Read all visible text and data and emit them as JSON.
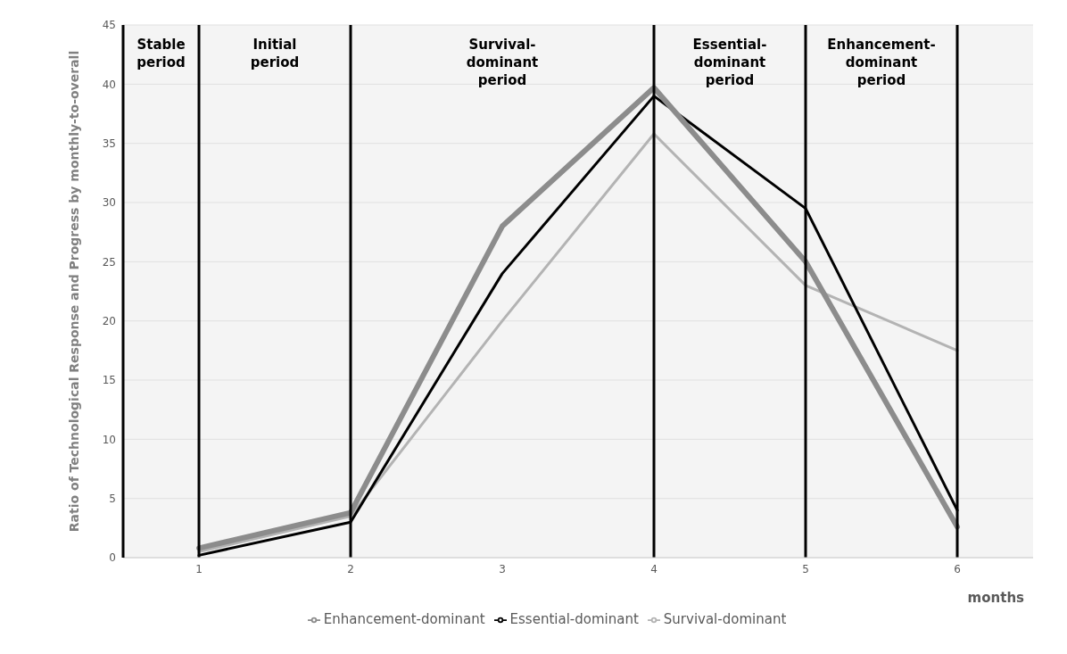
{
  "chart_data": {
    "type": "line",
    "xlabel": "months",
    "ylabel": "Ratio of Technological Response and Progress  by monthly-to-overall",
    "x": [
      1,
      2,
      3,
      4,
      5,
      6
    ],
    "series": [
      {
        "name": "Survival-dominant",
        "color": "#b3b3b3",
        "values": [
          0.5,
          3.5,
          20,
          35.8,
          23,
          17.5
        ]
      },
      {
        "name": "Essential-dominant",
        "color": "#000000",
        "values": [
          0.2,
          3,
          24,
          39,
          29.5,
          4
        ]
      },
      {
        "name": "Enhancement-dominant",
        "color": "#8c8c8c",
        "values": [
          0.8,
          3.8,
          28,
          39.7,
          25,
          2.6
        ]
      }
    ],
    "xlim": [
      0.5,
      6.5
    ],
    "xticks": [
      1,
      2,
      3,
      4,
      5,
      6
    ],
    "ylim": [
      0,
      45
    ],
    "yticks": [
      0,
      5,
      10,
      15,
      20,
      25,
      30,
      35,
      40,
      45
    ],
    "ref_lines": [
      {
        "axis": "x",
        "value": 1,
        "color": "#000000"
      },
      {
        "axis": "x",
        "value": 2,
        "color": "#000000"
      },
      {
        "axis": "x",
        "value": 4,
        "color": "#000000"
      },
      {
        "axis": "x",
        "value": 5,
        "color": "#000000"
      },
      {
        "axis": "x",
        "value": 6,
        "color": "#000000"
      }
    ],
    "annotations": [
      "Stable period",
      "Initial period",
      "Survival-dominant period",
      "Essential-dominant period",
      "Enhancement-dominant period"
    ],
    "grid": "y",
    "legend": "bottom",
    "marker": "none",
    "line_style": "solid"
  }
}
